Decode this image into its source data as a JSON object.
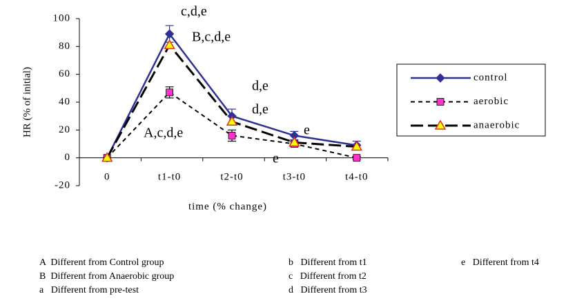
{
  "chart_data": {
    "type": "line",
    "x_label": "time (% change)",
    "y_label": "HR (% of initial)",
    "categories": [
      "0",
      "t1-t0",
      "t2-t0",
      "t3-t0",
      "t4-t0"
    ],
    "series": [
      {
        "name": "control",
        "color": "#2e3192",
        "marker": "diamond",
        "marker_color": "#2e3192",
        "values": [
          0,
          89,
          30,
          16,
          9
        ],
        "errors": [
          0,
          6,
          5,
          3,
          3
        ]
      },
      {
        "name": "aerobic",
        "color": "#000000",
        "marker": "square",
        "marker_color": "#ff33cc",
        "values": [
          0,
          47,
          16,
          10,
          0
        ],
        "errors": [
          0,
          4,
          4,
          2,
          1
        ]
      },
      {
        "name": "anaerobic",
        "color": "#000000",
        "marker": "triangle",
        "marker_color": "#ffff00",
        "values": [
          0,
          81,
          26,
          11,
          8
        ]
      }
    ],
    "ylim": [
      -20,
      100
    ],
    "yticks": [
      -20,
      0,
      20,
      40,
      60,
      80,
      100
    ],
    "annotations": [
      "c,d,e",
      "B,c,d,e",
      "A,c,d,e",
      "d,e",
      "d,e",
      "e",
      "e"
    ],
    "notes": [
      "A  Different from Control group",
      "B  Different from Anaerobic group",
      "a   Different from pre-test",
      "b   Different from t1",
      "c   Different from t2",
      "d   Different from t3",
      "e   Different from t4"
    ]
  }
}
